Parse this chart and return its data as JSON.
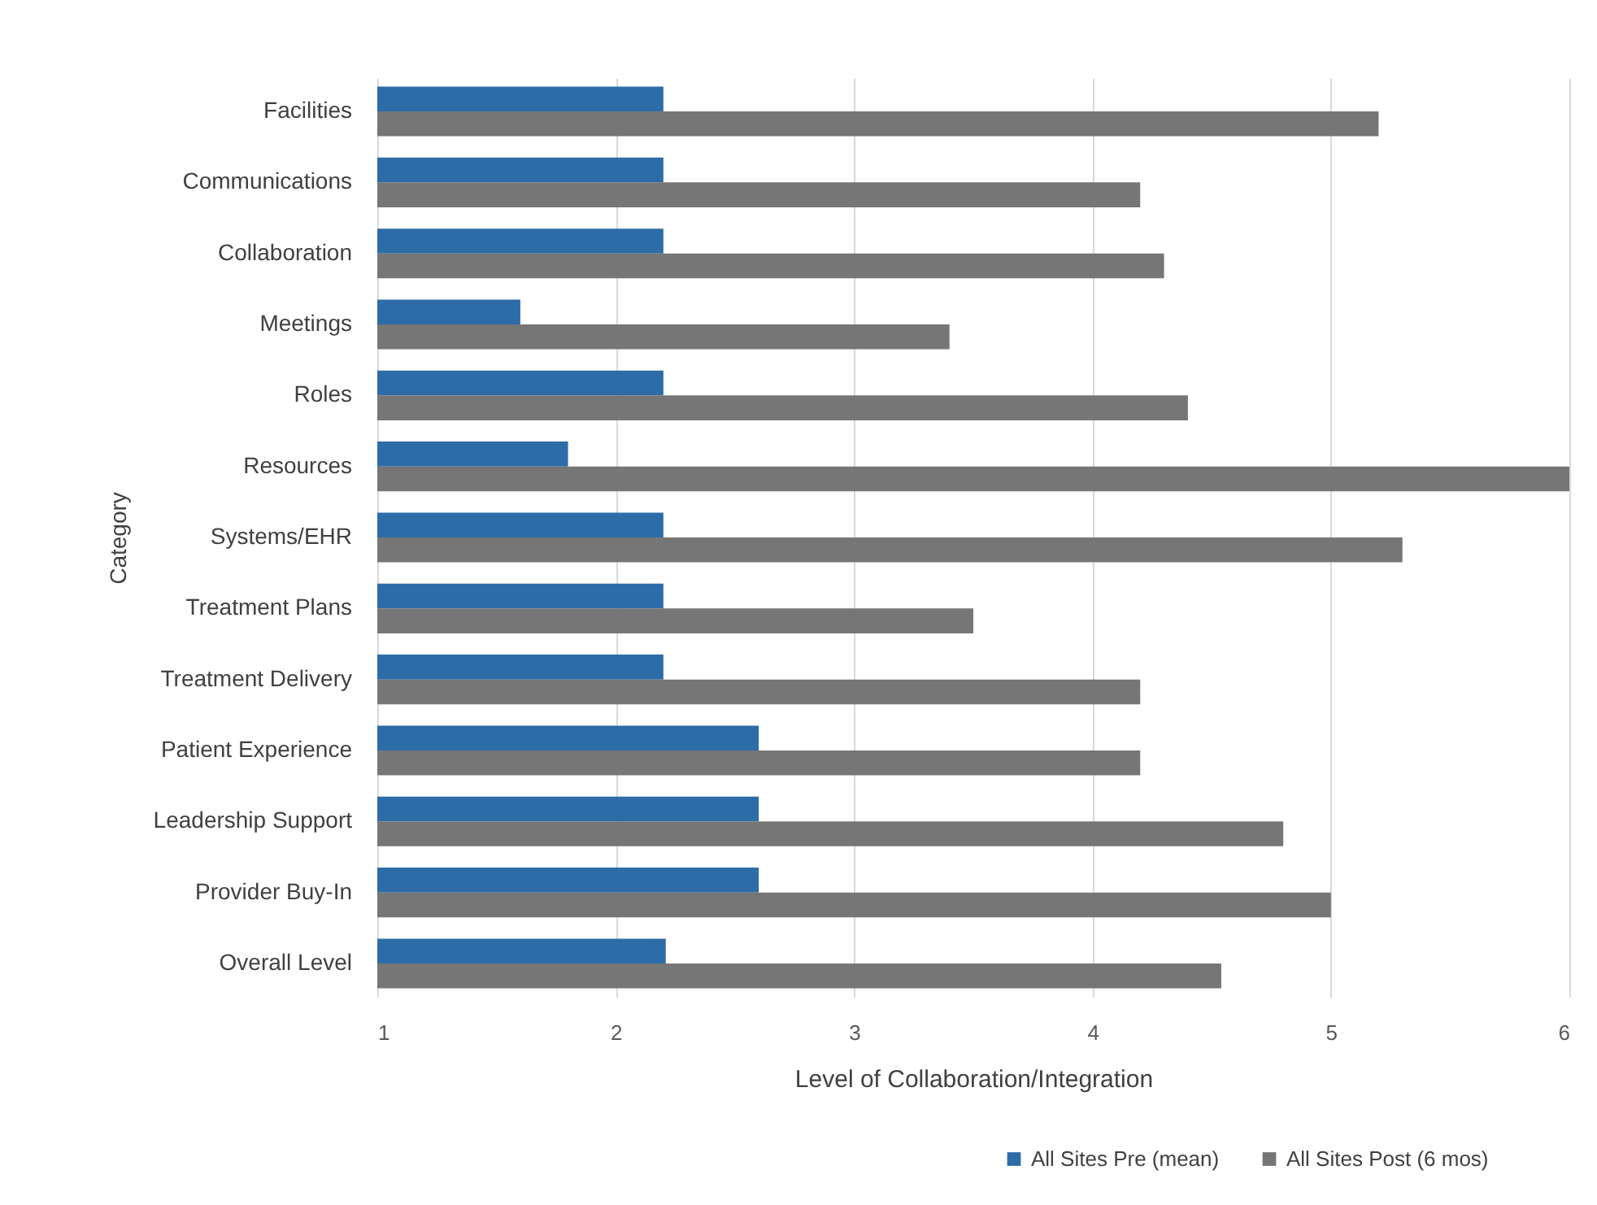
{
  "chart_data": {
    "type": "bar",
    "orientation": "horizontal",
    "xlabel": "Level of Collaboration/Integration",
    "ylabel": "Category",
    "categories": [
      "Facilities",
      "Communications",
      "Collaboration",
      "Meetings",
      "Roles",
      "Resources",
      "Systems/EHR",
      "Treatment Plans",
      "Treatment Delivery",
      "Patient Experience",
      "Leadership Support",
      "Provider Buy-In",
      "Overall Level"
    ],
    "series": [
      {
        "name": "All Sites Pre (mean)",
        "color": "#2e6ca8",
        "values": [
          2.2,
          2.2,
          2.2,
          1.6,
          2.2,
          1.8,
          2.2,
          2.2,
          2.2,
          2.6,
          2.6,
          2.6,
          2.21
        ]
      },
      {
        "name": "All Sites Post (6 mos)",
        "color": "#767676",
        "values": [
          5.2,
          4.2,
          4.3,
          3.4,
          4.4,
          6.0,
          5.3,
          3.5,
          4.2,
          4.2,
          4.8,
          5.0,
          4.54
        ]
      }
    ],
    "xlim": [
      1,
      6
    ],
    "xticks": [
      1,
      2,
      3,
      4,
      5,
      6
    ],
    "grid": "x",
    "legend": "bottom right"
  }
}
